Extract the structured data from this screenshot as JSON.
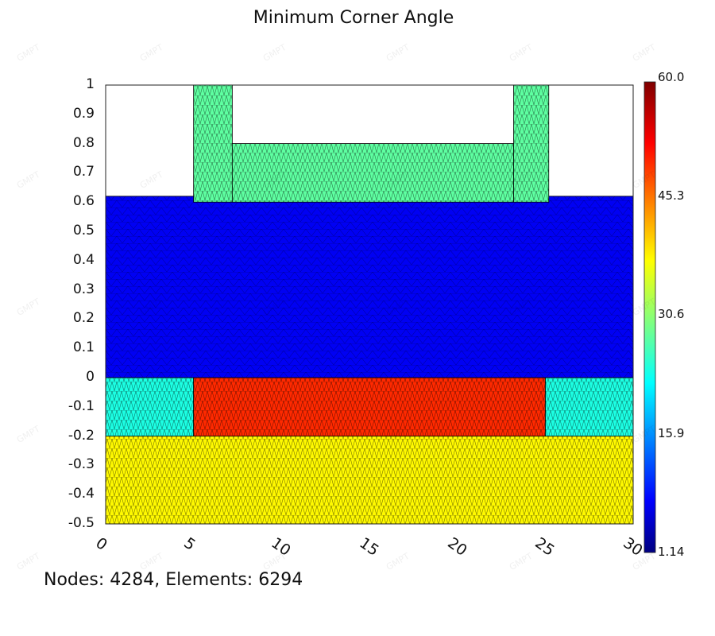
{
  "chart_data": {
    "type": "heatmap",
    "title": "Minimum Corner Angle",
    "xlabel": "",
    "ylabel": "",
    "xlim": [
      0,
      30
    ],
    "ylim": [
      -0.5,
      1
    ],
    "x_ticks": [
      "0",
      "5",
      "10",
      "15",
      "20",
      "25",
      "30"
    ],
    "y_ticks": [
      "1",
      "0.9",
      "0.8",
      "0.7",
      "0.6",
      "0.5",
      "0.4",
      "0.3",
      "0.2",
      "0.1",
      "0",
      "-0.1",
      "-0.2",
      "-0.3",
      "-0.4",
      "-0.5"
    ],
    "colorbar": {
      "min": 1.14,
      "max": 60.0,
      "labels": [
        "60.0",
        "45.3",
        "30.6",
        "15.9",
        "1.14"
      ],
      "colormap": "jet"
    },
    "regions": [
      {
        "x": [
          0,
          30
        ],
        "y": [
          -0.5,
          -0.2
        ],
        "value": 38
      },
      {
        "x": [
          0,
          5
        ],
        "y": [
          -0.2,
          0
        ],
        "value": 24
      },
      {
        "x": [
          25,
          30
        ],
        "y": [
          -0.2,
          0
        ],
        "value": 24
      },
      {
        "x": [
          5,
          25
        ],
        "y": [
          -0.2,
          0
        ],
        "value": 50
      },
      {
        "x": [
          0,
          30
        ],
        "y": [
          0,
          0.62
        ],
        "value": 7
      },
      {
        "x": [
          5,
          7.2
        ],
        "y": [
          0.6,
          1
        ],
        "value": 28
      },
      {
        "x": [
          23.2,
          25.2
        ],
        "y": [
          0.6,
          1
        ],
        "value": 28
      },
      {
        "x": [
          7.2,
          23.2
        ],
        "y": [
          0.6,
          0.8
        ],
        "value": 28
      }
    ]
  },
  "footer": {
    "text": "Nodes: 4284, Elements: 6294"
  },
  "watermark": {
    "text": "GMPT"
  }
}
